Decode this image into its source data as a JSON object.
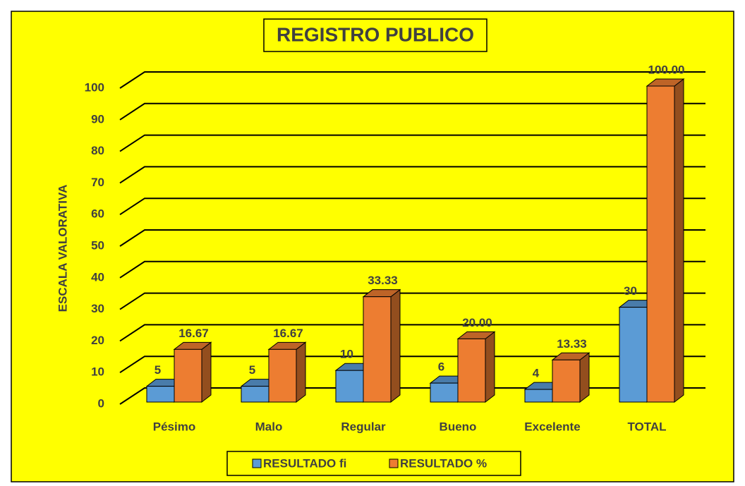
{
  "chart_data": {
    "type": "bar3d",
    "title": "REGISTRO PUBLICO",
    "y_label": "ESCALA VALORATIVA",
    "categories": [
      "Pésimo",
      "Malo",
      "Regular",
      "Bueno",
      "Excelente",
      "TOTAL"
    ],
    "series": [
      {
        "name": "RESULTADO fi",
        "color": "#5b9bd5",
        "values": [
          5,
          5,
          10,
          6,
          4,
          30
        ]
      },
      {
        "name": "RESULTADO %",
        "color": "#ed7d31",
        "values": [
          16.67,
          16.67,
          33.33,
          20,
          13.33,
          100
        ],
        "value_labels": [
          "16.67",
          "16.67",
          "33.33",
          "20.00",
          "13.33",
          "100.00"
        ]
      }
    ],
    "ylim": [
      0,
      100
    ],
    "yticks": [
      0,
      10,
      20,
      30,
      40,
      50,
      60,
      70,
      80,
      90,
      100
    ],
    "grid": true,
    "legend": "bottom",
    "background": "#ffff00"
  }
}
